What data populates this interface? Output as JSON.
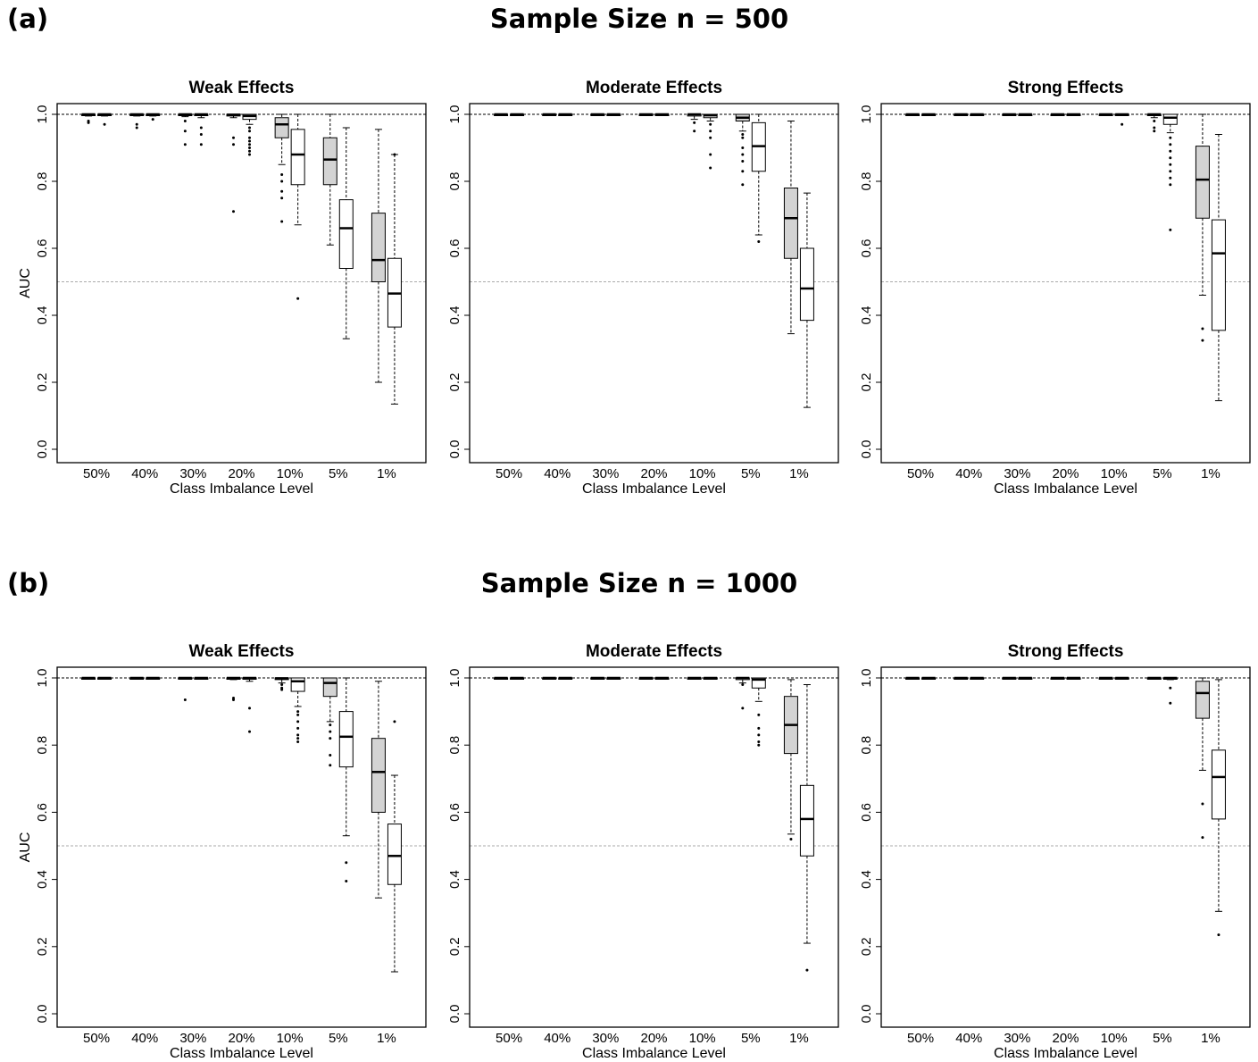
{
  "figure": {
    "panel_a": {
      "letter": "(a)",
      "title": "Sample Size n = 500"
    },
    "panel_b": {
      "letter": "(b)",
      "title": "Sample Size n = 1000"
    }
  },
  "colors": {
    "box_fill_a": "#d3d3d3",
    "box_fill_b": "#ffffff",
    "reference_top": "#000000",
    "reference_half": "#aaaaaa"
  },
  "chart_data": [
    {
      "type": "boxplot",
      "panel": "a",
      "title": "Weak Effects",
      "xlabel": "Class Imbalance Level",
      "ylabel": "AUC",
      "categories": [
        "50%",
        "40%",
        "30%",
        "20%",
        "10%",
        "5%",
        "1%"
      ],
      "ylim": [
        0,
        1
      ],
      "yticks": [
        "0.0",
        "0.2",
        "0.4",
        "0.6",
        "0.8",
        "1.0"
      ],
      "reference_lines": [
        1.0,
        0.5
      ],
      "series": [
        {
          "boxes": [
            [
              0.995,
              1,
              1,
              1,
              1
            ],
            [
              0.995,
              1,
              1,
              1,
              1
            ],
            [
              0.993,
              0.998,
              1,
              1,
              1
            ],
            [
              0.99,
              0.995,
              0.999,
              1,
              1
            ],
            [
              0.85,
              0.93,
              0.97,
              0.99,
              1
            ],
            [
              0.61,
              0.79,
              0.865,
              0.93,
              1
            ],
            [
              0.2,
              0.5,
              0.565,
              0.705,
              0.955
            ]
          ],
          "outliers": [
            [
              0.98,
              0.975
            ],
            [
              0.97,
              0.96
            ],
            [
              0.95,
              0.91,
              0.98
            ],
            [
              0.93,
              0.91,
              0.71
            ],
            [
              0.82,
              0.8,
              0.77,
              0.75,
              0.68
            ],
            [],
            []
          ]
        },
        {
          "boxes": [
            [
              0.995,
              1,
              1,
              1,
              1
            ],
            [
              0.995,
              1,
              1,
              1,
              1
            ],
            [
              0.99,
              0.997,
              1,
              1,
              1
            ],
            [
              0.97,
              0.985,
              0.995,
              1,
              1
            ],
            [
              0.67,
              0.79,
              0.88,
              0.955,
              1
            ],
            [
              0.33,
              0.54,
              0.66,
              0.745,
              0.96
            ],
            [
              0.135,
              0.365,
              0.465,
              0.57,
              0.88
            ]
          ],
          "outliers": [
            [
              0.97
            ],
            [
              0.985
            ],
            [
              0.96,
              0.94,
              0.91
            ],
            [
              0.96,
              0.95,
              0.93,
              0.92,
              0.91,
              0.9,
              0.89,
              0.88
            ],
            [
              0.45
            ],
            [],
            [
              0.88
            ]
          ]
        }
      ]
    },
    {
      "type": "boxplot",
      "panel": "a",
      "title": "Moderate Effects",
      "xlabel": "Class Imbalance Level",
      "ylabel": "",
      "categories": [
        "50%",
        "40%",
        "30%",
        "20%",
        "10%",
        "5%",
        "1%"
      ],
      "ylim": [
        0,
        1
      ],
      "yticks": [
        "0.0",
        "0.2",
        "0.4",
        "0.6",
        "0.8",
        "1.0"
      ],
      "reference_lines": [
        1.0,
        0.5
      ],
      "series": [
        {
          "boxes": [
            [
              1,
              1,
              1,
              1,
              1
            ],
            [
              1,
              1,
              1,
              1,
              1
            ],
            [
              1,
              1,
              1,
              1,
              1
            ],
            [
              0.998,
              1,
              1,
              1,
              1
            ],
            [
              0.985,
              0.995,
              1,
              1,
              1
            ],
            [
              0.95,
              0.98,
              0.99,
              1,
              1
            ],
            [
              0.345,
              0.57,
              0.69,
              0.78,
              0.98
            ]
          ],
          "outliers": [
            [],
            [],
            [],
            [],
            [
              0.975,
              0.95
            ],
            [
              0.94,
              0.93,
              0.9,
              0.88,
              0.86,
              0.83,
              0.79
            ],
            []
          ]
        },
        {
          "boxes": [
            [
              1,
              1,
              1,
              1,
              1
            ],
            [
              1,
              1,
              1,
              1,
              1
            ],
            [
              1,
              1,
              1,
              1,
              1
            ],
            [
              0.998,
              1,
              1,
              1,
              1
            ],
            [
              0.98,
              0.99,
              0.997,
              1,
              1
            ],
            [
              0.64,
              0.83,
              0.905,
              0.975,
              1
            ],
            [
              0.125,
              0.385,
              0.48,
              0.6,
              0.765
            ]
          ],
          "outliers": [
            [],
            [],
            [],
            [],
            [
              0.97,
              0.95,
              0.93,
              0.88,
              0.84
            ],
            [
              0.62
            ],
            []
          ]
        }
      ]
    },
    {
      "type": "boxplot",
      "panel": "a",
      "title": "Strong Effects",
      "xlabel": "Class Imbalance Level",
      "ylabel": "",
      "categories": [
        "50%",
        "40%",
        "30%",
        "20%",
        "10%",
        "5%",
        "1%"
      ],
      "ylim": [
        0,
        1
      ],
      "yticks": [
        "0.0",
        "0.2",
        "0.4",
        "0.6",
        "0.8",
        "1.0"
      ],
      "reference_lines": [
        1.0,
        0.5
      ],
      "series": [
        {
          "boxes": [
            [
              1,
              1,
              1,
              1,
              1
            ],
            [
              1,
              1,
              1,
              1,
              1
            ],
            [
              1,
              1,
              1,
              1,
              1
            ],
            [
              1,
              1,
              1,
              1,
              1
            ],
            [
              1,
              1,
              1,
              1,
              1
            ],
            [
              0.99,
              0.998,
              1,
              1,
              1
            ],
            [
              0.46,
              0.69,
              0.805,
              0.905,
              1
            ]
          ],
          "outliers": [
            [],
            [],
            [],
            [],
            [],
            [
              0.98,
              0.96,
              0.95
            ],
            [
              0.36,
              0.325
            ]
          ]
        },
        {
          "boxes": [
            [
              1,
              1,
              1,
              1,
              1
            ],
            [
              1,
              1,
              1,
              1,
              1
            ],
            [
              1,
              1,
              1,
              1,
              1
            ],
            [
              1,
              1,
              1,
              1,
              1
            ],
            [
              0.998,
              1,
              1,
              1,
              1
            ],
            [
              0.945,
              0.97,
              0.99,
              1,
              1
            ],
            [
              0.145,
              0.355,
              0.585,
              0.685,
              0.94
            ]
          ],
          "outliers": [
            [],
            [],
            [],
            [],
            [
              0.97
            ],
            [
              0.93,
              0.91,
              0.89,
              0.87,
              0.85,
              0.83,
              0.81,
              0.79,
              0.655
            ],
            []
          ]
        }
      ]
    },
    {
      "type": "boxplot",
      "panel": "b",
      "title": "Weak Effects",
      "xlabel": "Class Imbalance Level",
      "ylabel": "AUC",
      "categories": [
        "50%",
        "40%",
        "30%",
        "20%",
        "10%",
        "5%",
        "1%"
      ],
      "ylim": [
        0,
        1
      ],
      "yticks": [
        "0.0",
        "0.2",
        "0.4",
        "0.6",
        "0.8",
        "1.0"
      ],
      "reference_lines": [
        1.0,
        0.5
      ],
      "series": [
        {
          "boxes": [
            [
              1,
              1,
              1,
              1,
              1
            ],
            [
              1,
              1,
              1,
              1,
              1
            ],
            [
              1,
              1,
              1,
              1,
              1
            ],
            [
              0.995,
              0.999,
              1,
              1,
              1
            ],
            [
              0.985,
              0.995,
              0.999,
              1,
              1
            ],
            [
              0.87,
              0.945,
              0.985,
              1,
              1
            ],
            [
              0.345,
              0.6,
              0.72,
              0.82,
              0.99
            ]
          ],
          "outliers": [
            [],
            [],
            [
              0.935
            ],
            [
              0.94,
              0.935
            ],
            [
              0.98,
              0.97,
              0.965
            ],
            [
              0.86,
              0.84,
              0.82,
              0.77,
              0.74
            ],
            []
          ]
        },
        {
          "boxes": [
            [
              1,
              1,
              1,
              1,
              1
            ],
            [
              1,
              1,
              1,
              1,
              1
            ],
            [
              1,
              1,
              1,
              1,
              1
            ],
            [
              0.99,
              0.998,
              1,
              1,
              1
            ],
            [
              0.915,
              0.96,
              0.99,
              1,
              1
            ],
            [
              0.53,
              0.735,
              0.825,
              0.9,
              1
            ],
            [
              0.125,
              0.385,
              0.47,
              0.565,
              0.71
            ]
          ],
          "outliers": [
            [],
            [],
            [],
            [
              0.91,
              0.84
            ],
            [
              0.9,
              0.89,
              0.87,
              0.85,
              0.83,
              0.82,
              0.81
            ],
            [
              0.45,
              0.395
            ],
            [
              0.87
            ]
          ]
        }
      ]
    },
    {
      "type": "boxplot",
      "panel": "b",
      "title": "Moderate Effects",
      "xlabel": "Class Imbalance Level",
      "ylabel": "",
      "categories": [
        "50%",
        "40%",
        "30%",
        "20%",
        "10%",
        "5%",
        "1%"
      ],
      "ylim": [
        0,
        1
      ],
      "yticks": [
        "0.0",
        "0.2",
        "0.4",
        "0.6",
        "0.8",
        "1.0"
      ],
      "reference_lines": [
        1.0,
        0.5
      ],
      "series": [
        {
          "boxes": [
            [
              1,
              1,
              1,
              1,
              1
            ],
            [
              1,
              1,
              1,
              1,
              1
            ],
            [
              1,
              1,
              1,
              1,
              1
            ],
            [
              1,
              1,
              1,
              1,
              1
            ],
            [
              1,
              1,
              1,
              1,
              1
            ],
            [
              0.985,
              0.995,
              1,
              1,
              1
            ],
            [
              0.535,
              0.775,
              0.86,
              0.945,
              0.995
            ]
          ],
          "outliers": [
            [],
            [],
            [],
            [],
            [],
            [
              0.98,
              0.91
            ],
            [
              0.52
            ]
          ]
        },
        {
          "boxes": [
            [
              1,
              1,
              1,
              1,
              1
            ],
            [
              1,
              1,
              1,
              1,
              1
            ],
            [
              1,
              1,
              1,
              1,
              1
            ],
            [
              1,
              1,
              1,
              1,
              1
            ],
            [
              1,
              1,
              1,
              1,
              1
            ],
            [
              0.93,
              0.97,
              0.995,
              1,
              1
            ],
            [
              0.21,
              0.47,
              0.58,
              0.68,
              0.98
            ]
          ],
          "outliers": [
            [],
            [],
            [],
            [],
            [],
            [
              0.89,
              0.85,
              0.83,
              0.81,
              0.8
            ],
            [
              0.13
            ]
          ]
        }
      ]
    },
    {
      "type": "boxplot",
      "panel": "b",
      "title": "Strong Effects",
      "xlabel": "Class Imbalance Level",
      "ylabel": "",
      "categories": [
        "50%",
        "40%",
        "30%",
        "20%",
        "10%",
        "5%",
        "1%"
      ],
      "ylim": [
        0,
        1
      ],
      "yticks": [
        "0.0",
        "0.2",
        "0.4",
        "0.6",
        "0.8",
        "1.0"
      ],
      "reference_lines": [
        1.0,
        0.5
      ],
      "series": [
        {
          "boxes": [
            [
              1,
              1,
              1,
              1,
              1
            ],
            [
              1,
              1,
              1,
              1,
              1
            ],
            [
              1,
              1,
              1,
              1,
              1
            ],
            [
              1,
              1,
              1,
              1,
              1
            ],
            [
              1,
              1,
              1,
              1,
              1
            ],
            [
              1,
              1,
              1,
              1,
              1
            ],
            [
              0.725,
              0.88,
              0.955,
              0.99,
              1
            ]
          ],
          "outliers": [
            [],
            [],
            [],
            [],
            [],
            [],
            [
              0.625,
              0.525
            ]
          ]
        },
        {
          "boxes": [
            [
              1,
              1,
              1,
              1,
              1
            ],
            [
              1,
              1,
              1,
              1,
              1
            ],
            [
              1,
              1,
              1,
              1,
              1
            ],
            [
              1,
              1,
              1,
              1,
              1
            ],
            [
              1,
              1,
              1,
              1,
              1
            ],
            [
              0.995,
              0.999,
              1,
              1,
              1
            ],
            [
              0.305,
              0.58,
              0.705,
              0.785,
              0.995
            ]
          ],
          "outliers": [
            [],
            [],
            [],
            [],
            [],
            [
              0.97,
              0.925
            ],
            [
              0.235
            ]
          ]
        }
      ]
    }
  ]
}
